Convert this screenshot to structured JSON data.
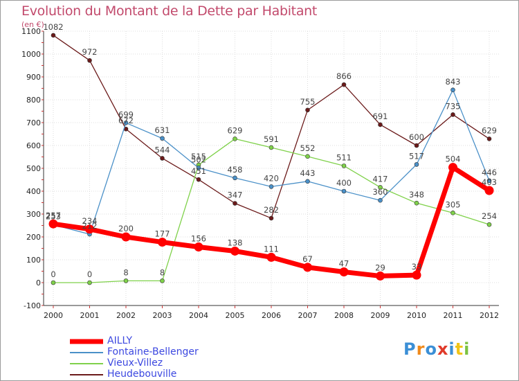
{
  "chart_data": {
    "type": "line",
    "title": "Evolution du Montant de la Dette par Habitant",
    "subtitle": "(en €)",
    "x": [
      "2000",
      "2001",
      "2002",
      "2003",
      "2004",
      "2005",
      "2006",
      "2007",
      "2008",
      "2009",
      "2010",
      "2011",
      "2012"
    ],
    "ylim": [
      -100,
      1100
    ],
    "yticks": [
      -100,
      0,
      100,
      200,
      300,
      400,
      500,
      600,
      700,
      800,
      900,
      1000,
      1100
    ],
    "grid": true,
    "legend": "bottom-left",
    "series": [
      {
        "name": "AILLY",
        "color": "#ff0000",
        "values": [
          257,
          234,
          200,
          177,
          156,
          138,
          111,
          67,
          47,
          29,
          33,
          504,
          403
        ]
      },
      {
        "name": "Fontaine-Bellenger",
        "color": "#4a90c8",
        "values": [
          253,
          212,
          699,
          631,
          502,
          458,
          420,
          443,
          400,
          360,
          517,
          843,
          446
        ]
      },
      {
        "name": "Vieux-Villez",
        "color": "#7fd14a",
        "values": [
          0,
          0,
          8,
          8,
          515,
          629,
          591,
          552,
          511,
          417,
          348,
          305,
          254
        ]
      },
      {
        "name": "Heudebouville",
        "color": "#6b1a1a",
        "values": [
          1082,
          972,
          672,
          544,
          451,
          347,
          282,
          755,
          866,
          691,
          600,
          735,
          629
        ]
      }
    ]
  },
  "logo": {
    "text": "Proxiti",
    "letter_colors": [
      "#3b8fd6",
      "#f08a1c",
      "#3b8fd6",
      "#e03a2a",
      "#3b8fd6",
      "#f0c419",
      "#7cc242"
    ]
  }
}
